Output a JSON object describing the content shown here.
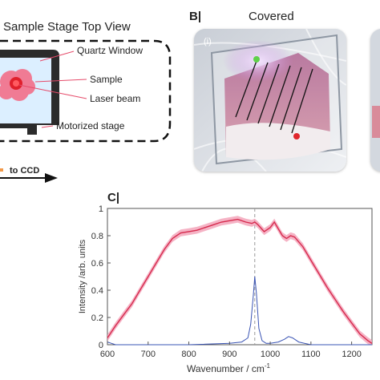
{
  "panelA": {
    "title": "Sample Stage Top View",
    "labels": {
      "window": "Quartz Window",
      "sample": "Sample",
      "laser": "Laser beam",
      "stage": "Motorized stage"
    },
    "to_ccd": "to CCD"
  },
  "panelB": {
    "letter": "B|",
    "title": "Covered",
    "inset_label": "(i)"
  },
  "panelC": {
    "letter": "C|",
    "chart_data": {
      "type": "line",
      "xlabel": "Wavenumber / cm",
      "xlabel_sup": "-1",
      "ylabel": "Intensity /arb. units",
      "xlim": [
        600,
        1250
      ],
      "ylim": [
        0,
        1
      ],
      "xticks": [
        600,
        700,
        800,
        900,
        1000,
        1100,
        1200
      ],
      "yticks": [
        0,
        0.2,
        0.4,
        0.6,
        0.8,
        1
      ],
      "vline_x": 962,
      "series": [
        {
          "color": "#d62b4e",
          "band_color": "#f2a0b6",
          "x": [
            600,
            620,
            640,
            660,
            680,
            700,
            720,
            740,
            760,
            780,
            800,
            820,
            840,
            860,
            880,
            900,
            920,
            940,
            955,
            962,
            970,
            985,
            1000,
            1010,
            1020,
            1030,
            1040,
            1050,
            1060,
            1080,
            1100,
            1120,
            1140,
            1160,
            1180,
            1200,
            1220,
            1240,
            1250
          ],
          "y": [
            0.05,
            0.14,
            0.22,
            0.3,
            0.4,
            0.5,
            0.6,
            0.7,
            0.78,
            0.82,
            0.83,
            0.84,
            0.86,
            0.88,
            0.9,
            0.91,
            0.92,
            0.9,
            0.89,
            0.9,
            0.88,
            0.83,
            0.86,
            0.9,
            0.85,
            0.8,
            0.78,
            0.8,
            0.79,
            0.72,
            0.62,
            0.52,
            0.42,
            0.33,
            0.24,
            0.16,
            0.08,
            0.03,
            0.01
          ]
        },
        {
          "color": "#3a54b4",
          "x": [
            600,
            610,
            620,
            650,
            700,
            800,
            900,
            930,
            945,
            952,
            958,
            962,
            966,
            972,
            980,
            990,
            1000,
            1020,
            1035,
            1045,
            1055,
            1070,
            1100,
            1150,
            1200,
            1250
          ],
          "y": [
            0.02,
            0.01,
            0.0,
            0.0,
            0.0,
            0.0,
            0.01,
            0.02,
            0.05,
            0.15,
            0.35,
            0.5,
            0.38,
            0.12,
            0.03,
            0.01,
            0.01,
            0.02,
            0.04,
            0.06,
            0.05,
            0.02,
            0.0,
            0.0,
            0.0,
            0.0
          ]
        }
      ]
    }
  }
}
